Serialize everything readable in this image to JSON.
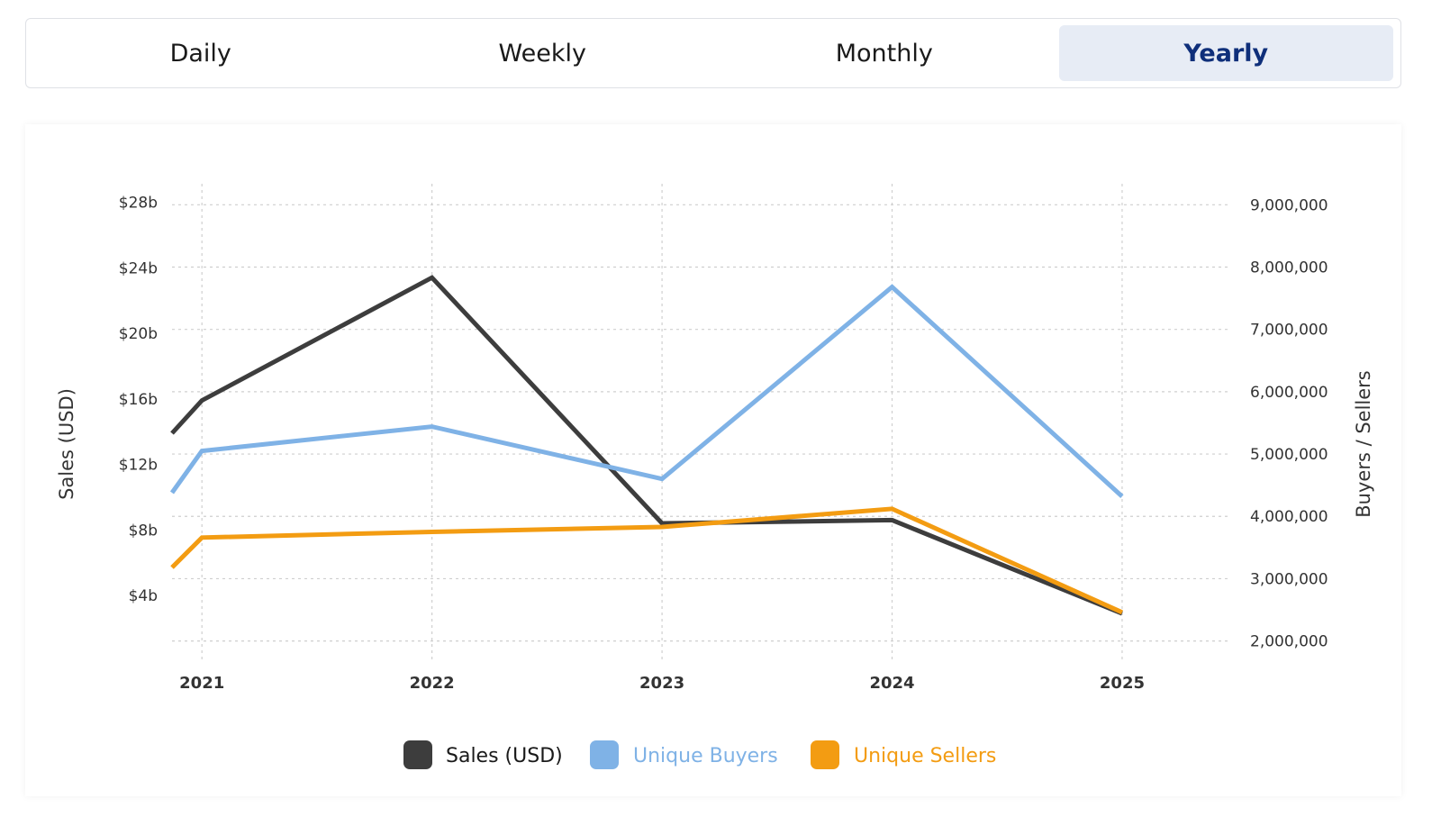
{
  "tabs": [
    {
      "label": "Daily",
      "active": false
    },
    {
      "label": "Weekly",
      "active": false
    },
    {
      "label": "Monthly",
      "active": false
    },
    {
      "label": "Yearly",
      "active": true
    }
  ],
  "chart_data": {
    "type": "line",
    "title": "",
    "x": [
      2020.87,
      2021,
      2022,
      2023,
      2024,
      2025
    ],
    "x_ticks": [
      "2021",
      "2022",
      "2023",
      "2024",
      "2025"
    ],
    "xlim": [
      2020.87,
      2025.47
    ],
    "y_left": {
      "label": "Sales (USD)",
      "range": [
        0.65,
        28.8
      ],
      "ticks": [
        "$4b",
        "$8b",
        "$12b",
        "$16b",
        "$20b",
        "$24b",
        "$28b"
      ],
      "tick_values": [
        4,
        8,
        12,
        16,
        20,
        24,
        28
      ]
    },
    "y_right": {
      "label": "Buyers / Sellers",
      "range": [
        1850000,
        9250000
      ],
      "ticks": [
        "2,000,000",
        "3,000,000",
        "4,000,000",
        "5,000,000",
        "6,000,000",
        "7,000,000",
        "8,000,000",
        "9,000,000"
      ],
      "tick_values": [
        2000000,
        3000000,
        4000000,
        5000000,
        6000000,
        7000000,
        8000000,
        9000000
      ]
    },
    "grid": true,
    "legend_position": "bottom",
    "series": [
      {
        "name": "Sales (USD)",
        "axis": "left",
        "color": "#3d3d3d",
        "values": [
          13.9,
          15.9,
          23.4,
          8.4,
          8.6,
          2.9
        ]
      },
      {
        "name": "Unique Buyers",
        "axis": "right",
        "color": "#7fb2e6",
        "values": [
          4380000,
          5050000,
          5440000,
          4600000,
          7680000,
          4320000
        ]
      },
      {
        "name": "Unique Sellers",
        "axis": "right",
        "color": "#f39c12",
        "values": [
          3180000,
          3660000,
          3750000,
          3830000,
          4120000,
          2460000
        ]
      }
    ]
  }
}
